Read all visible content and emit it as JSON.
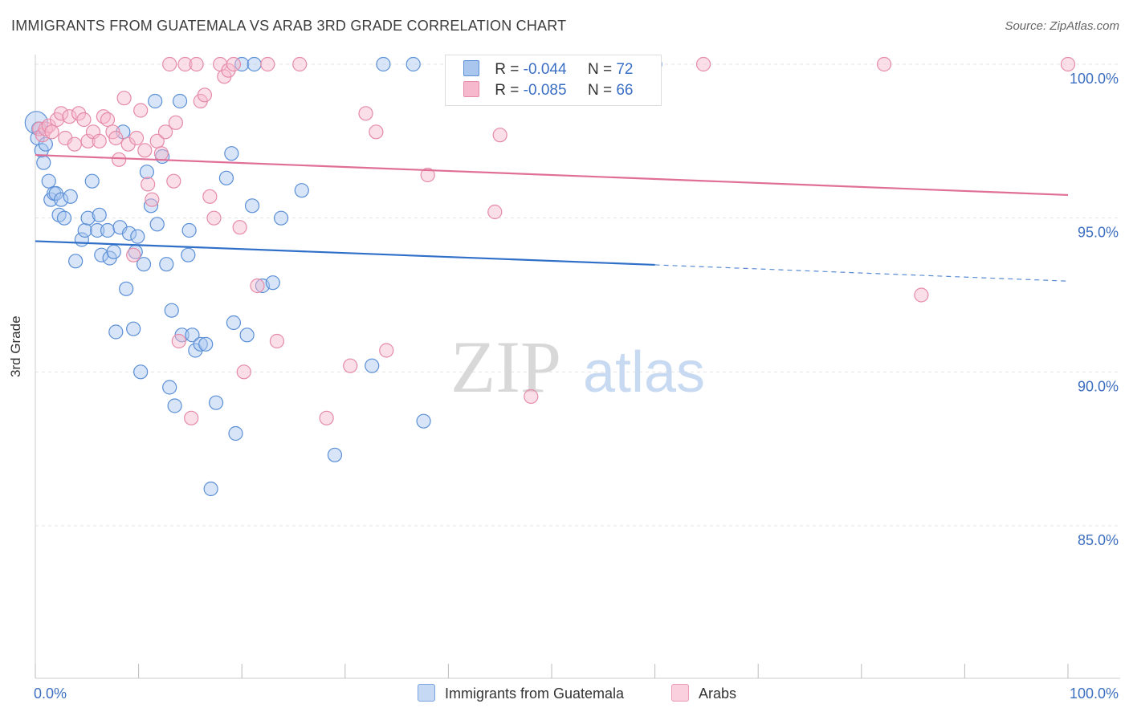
{
  "title": "IMMIGRANTS FROM GUATEMALA VS ARAB 3RD GRADE CORRELATION CHART",
  "source": "Source: ZipAtlas.com",
  "watermark": {
    "zip": "ZIP",
    "atlas": "atlas"
  },
  "colors": {
    "blue_fill": "#a9c6ef",
    "blue_stroke": "#5b8fd6",
    "blue_line": "#2f6fc8",
    "pink_fill": "#f6b8cc",
    "pink_stroke": "#e58aa8",
    "pink_line": "#e06f98",
    "tick_label": "#3d6fc0",
    "grid": "#e3e3e3"
  },
  "legend": {
    "rows": [
      {
        "r_label": "R = ",
        "r_value": "-0.044",
        "n_label": "N = ",
        "n_value": "72"
      },
      {
        "r_label": "R = ",
        "r_value": "-0.085",
        "n_label": "N = ",
        "n_value": "66"
      }
    ]
  },
  "chart_data": {
    "type": "scatter",
    "title": "IMMIGRANTS FROM GUATEMALA VS ARAB 3RD GRADE CORRELATION CHART",
    "xlabel": "",
    "ylabel": "3rd Grade",
    "xlim": [
      0,
      100
    ],
    "ylim": [
      80.5,
      100.8
    ],
    "x_ticks": [
      0,
      100
    ],
    "x_tick_labels": [
      "0.0%",
      "100.0%"
    ],
    "y_ticks": [
      85,
      90,
      95,
      100
    ],
    "y_tick_labels": [
      "85.0%",
      "90.0%",
      "95.0%",
      "100.0%"
    ],
    "grid": true,
    "legend_position": "top-center",
    "series": [
      {
        "name": "Immigrants from Guatemala",
        "color": "#a9c6ef",
        "trend": {
          "x0": 0,
          "y0": 94.25,
          "x1": 60,
          "y1": 93.48,
          "dashed_to_x": 100,
          "dashed_to_y": 92.95
        },
        "points": [
          [
            0.3,
            97.9
          ],
          [
            0.6,
            97.2
          ],
          [
            0.8,
            96.8
          ],
          [
            1.3,
            96.2
          ],
          [
            1.5,
            95.6
          ],
          [
            1.8,
            95.8
          ],
          [
            2.0,
            95.8
          ],
          [
            2.3,
            95.1
          ],
          [
            2.5,
            95.6
          ],
          [
            2.8,
            95.0
          ],
          [
            3.4,
            95.7
          ],
          [
            3.9,
            93.6
          ],
          [
            4.5,
            94.3
          ],
          [
            4.8,
            94.6
          ],
          [
            5.1,
            95.0
          ],
          [
            5.5,
            96.2
          ],
          [
            6.0,
            94.6
          ],
          [
            6.2,
            95.1
          ],
          [
            6.4,
            93.8
          ],
          [
            7.0,
            94.6
          ],
          [
            7.2,
            93.7
          ],
          [
            7.6,
            93.9
          ],
          [
            7.8,
            91.3
          ],
          [
            8.2,
            94.7
          ],
          [
            8.5,
            97.8
          ],
          [
            8.8,
            92.7
          ],
          [
            9.1,
            94.5
          ],
          [
            9.5,
            91.4
          ],
          [
            9.7,
            93.9
          ],
          [
            9.9,
            94.4
          ],
          [
            10.2,
            90.0
          ],
          [
            10.5,
            93.5
          ],
          [
            10.8,
            96.5
          ],
          [
            11.2,
            95.4
          ],
          [
            11.6,
            98.8
          ],
          [
            11.8,
            94.8
          ],
          [
            12.3,
            97.0
          ],
          [
            12.7,
            93.5
          ],
          [
            13.0,
            89.5
          ],
          [
            13.2,
            92.0
          ],
          [
            13.5,
            88.9
          ],
          [
            14.0,
            98.8
          ],
          [
            14.2,
            91.2
          ],
          [
            14.8,
            93.8
          ],
          [
            14.9,
            94.6
          ],
          [
            15.2,
            91.2
          ],
          [
            15.5,
            90.7
          ],
          [
            16.0,
            90.9
          ],
          [
            16.5,
            90.9
          ],
          [
            17.0,
            86.2
          ],
          [
            17.5,
            89.0
          ],
          [
            18.5,
            96.3
          ],
          [
            19.0,
            97.1
          ],
          [
            19.2,
            91.6
          ],
          [
            19.4,
            88.0
          ],
          [
            20.0,
            100.0
          ],
          [
            20.5,
            91.2
          ],
          [
            21.0,
            95.4
          ],
          [
            21.2,
            100.0
          ],
          [
            22.0,
            92.8
          ],
          [
            23.0,
            92.9
          ],
          [
            23.8,
            95.0
          ],
          [
            25.8,
            95.9
          ],
          [
            29.0,
            87.3
          ],
          [
            32.6,
            90.2
          ],
          [
            33.7,
            100.0
          ],
          [
            36.6,
            100.0
          ],
          [
            37.6,
            88.4
          ],
          [
            60.0,
            100.0
          ],
          [
            0.1,
            98.1
          ],
          [
            0.2,
            97.6
          ],
          [
            1.0,
            97.4
          ]
        ]
      },
      {
        "name": "Arabs",
        "color": "#f6b8cc",
        "trend": {
          "x0": 0,
          "y0": 97.05,
          "x1": 100,
          "y1": 95.75
        },
        "points": [
          [
            0.4,
            97.9
          ],
          [
            0.7,
            97.7
          ],
          [
            1.0,
            97.9
          ],
          [
            1.3,
            98.0
          ],
          [
            1.6,
            97.8
          ],
          [
            2.1,
            98.2
          ],
          [
            2.5,
            98.4
          ],
          [
            2.9,
            97.6
          ],
          [
            3.3,
            98.3
          ],
          [
            3.8,
            97.4
          ],
          [
            4.2,
            98.4
          ],
          [
            4.7,
            98.2
          ],
          [
            5.1,
            97.5
          ],
          [
            5.6,
            97.8
          ],
          [
            6.2,
            97.5
          ],
          [
            6.6,
            98.3
          ],
          [
            7.0,
            98.2
          ],
          [
            7.5,
            97.8
          ],
          [
            7.8,
            97.6
          ],
          [
            8.1,
            96.9
          ],
          [
            8.6,
            98.9
          ],
          [
            9.0,
            97.4
          ],
          [
            9.5,
            93.8
          ],
          [
            9.8,
            97.6
          ],
          [
            10.2,
            98.5
          ],
          [
            10.6,
            97.2
          ],
          [
            10.9,
            96.1
          ],
          [
            11.3,
            95.6
          ],
          [
            11.8,
            97.5
          ],
          [
            12.2,
            97.1
          ],
          [
            12.6,
            97.8
          ],
          [
            13.0,
            100.0
          ],
          [
            13.4,
            96.2
          ],
          [
            13.6,
            98.1
          ],
          [
            13.9,
            91.0
          ],
          [
            14.5,
            100.0
          ],
          [
            15.1,
            88.5
          ],
          [
            15.6,
            100.0
          ],
          [
            16.0,
            98.8
          ],
          [
            16.4,
            99.0
          ],
          [
            16.9,
            95.7
          ],
          [
            17.3,
            95.0
          ],
          [
            17.9,
            100.0
          ],
          [
            18.3,
            99.6
          ],
          [
            18.7,
            99.8
          ],
          [
            19.2,
            100.0
          ],
          [
            19.8,
            94.7
          ],
          [
            20.2,
            90.0
          ],
          [
            21.5,
            92.8
          ],
          [
            22.5,
            100.0
          ],
          [
            23.4,
            91.0
          ],
          [
            25.6,
            100.0
          ],
          [
            28.2,
            88.5
          ],
          [
            30.5,
            90.2
          ],
          [
            32.0,
            98.4
          ],
          [
            33.0,
            97.8
          ],
          [
            34.0,
            90.7
          ],
          [
            38.0,
            96.4
          ],
          [
            44.5,
            95.2
          ],
          [
            45.0,
            97.7
          ],
          [
            47.8,
            100.0
          ],
          [
            48.0,
            89.2
          ],
          [
            64.7,
            100.0
          ],
          [
            85.8,
            92.5
          ],
          [
            82.2,
            100.0
          ],
          [
            100.0,
            100.0
          ]
        ]
      }
    ]
  },
  "bottom_legend": [
    {
      "label": "Immigrants from Guatemala"
    },
    {
      "label": "Arabs"
    }
  ]
}
